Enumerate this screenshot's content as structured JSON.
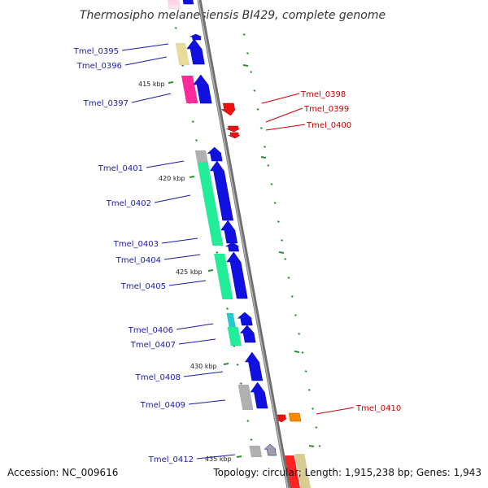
{
  "title": "Thermosipho melanesiensis BI429, complete genome",
  "footer": {
    "accession": "Accession: NC_009616",
    "summary": "Topology: circular; Length: 1,915,238 bp; Genes: 1,943"
  },
  "colors": {
    "forward_label": "#1a1aaa",
    "reverse_label": "#cc0000",
    "tick": "#2e8b2e",
    "backbone": "#888888",
    "forward_gene": "#1010e0",
    "reverse_gene": "#ee1111"
  },
  "position_labels": [
    "415 kbp",
    "420 kbp",
    "425 kbp",
    "430 kbp",
    "435 kbp"
  ],
  "gene_labels": {
    "forward": [
      "Tmel_0395",
      "Tmel_0396",
      "Tmel_0397",
      "Tmel_0401",
      "Tmel_0402",
      "Tmel_0403",
      "Tmel_0404",
      "Tmel_0405",
      "Tmel_0406",
      "Tmel_0407",
      "Tmel_0408",
      "Tmel_0409",
      "Tmel_0412"
    ],
    "reverse": [
      "Tmel_0398",
      "Tmel_0399",
      "Tmel_0400",
      "Tmel_0410"
    ]
  }
}
